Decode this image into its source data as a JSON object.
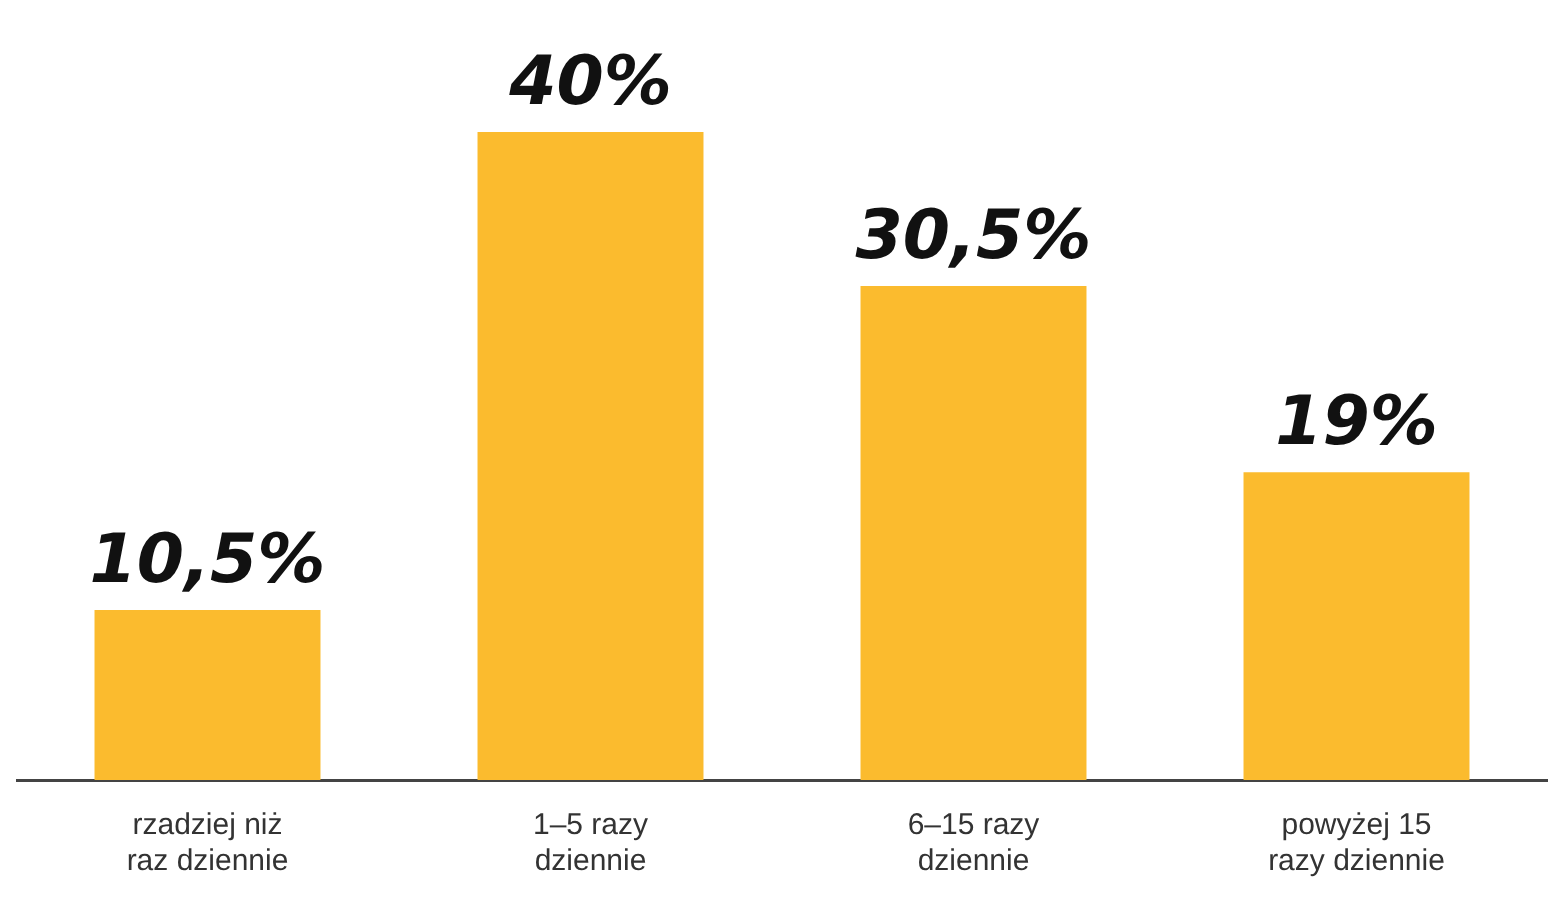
{
  "chart_data": {
    "type": "bar",
    "categories": [
      "rzadziej niż raz dziennie",
      "1–5 razy dziennie",
      "6–15 razy dziennie",
      "powyżej 15 razy dziennie"
    ],
    "values": [
      10.5,
      40,
      30.5,
      19
    ],
    "value_labels": [
      "10,5%",
      "40%",
      "30,5%",
      "19%"
    ],
    "color": "#fbbb2e",
    "grid": false,
    "legend": false
  }
}
